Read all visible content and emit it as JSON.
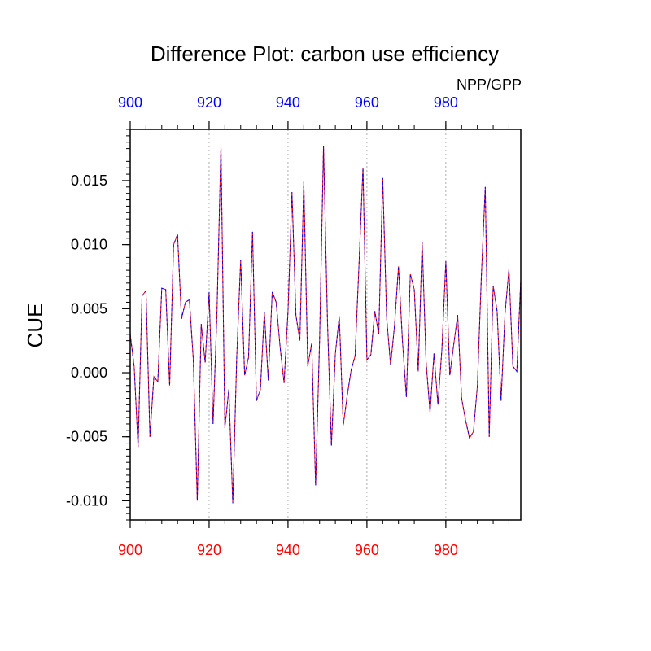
{
  "chart_data": {
    "type": "line",
    "title": "Difference Plot: carbon use efficiency",
    "subtitle": "NPP/GPP",
    "ylabel": "CUE",
    "xlim": [
      900,
      999
    ],
    "ylim": [
      -0.0115,
      0.019
    ],
    "x_ticks": [
      900,
      920,
      940,
      960,
      980
    ],
    "x_tick_labels": [
      "900",
      "920",
      "940",
      "960",
      "980"
    ],
    "y_ticks": [
      -0.01,
      -0.005,
      0.0,
      0.005,
      0.01,
      0.015
    ],
    "y_tick_labels": [
      "-0.010",
      "-0.005",
      "0.000",
      "0.005",
      "0.010",
      "0.015"
    ],
    "colors": {
      "top_axis": "#0000ff",
      "bottom_axis": "#ff0000",
      "line_a": "#ff0000",
      "line_b": "#0000ff",
      "grid": "#999999"
    },
    "series": [
      {
        "name": "difference",
        "x": [
          900,
          901,
          902,
          903,
          904,
          905,
          906,
          907,
          908,
          909,
          910,
          911,
          912,
          913,
          914,
          915,
          916,
          917,
          918,
          919,
          920,
          921,
          922,
          923,
          924,
          925,
          926,
          927,
          928,
          929,
          930,
          931,
          932,
          933,
          934,
          935,
          936,
          937,
          938,
          939,
          940,
          941,
          942,
          943,
          944,
          945,
          946,
          947,
          948,
          949,
          950,
          951,
          952,
          953,
          954,
          955,
          956,
          957,
          958,
          959,
          960,
          961,
          962,
          963,
          964,
          965,
          966,
          967,
          968,
          969,
          970,
          971,
          972,
          973,
          974,
          975,
          976,
          977,
          978,
          979,
          980,
          981,
          982,
          983,
          984,
          985,
          986,
          987,
          988,
          989,
          990,
          991,
          992,
          993,
          994,
          995,
          996,
          997,
          998,
          999
        ],
        "values": [
          0.003,
          0.0005,
          -0.0058,
          0.006,
          0.0064,
          -0.005,
          -0.0003,
          -0.0007,
          0.0066,
          0.0065,
          -0.001,
          0.01,
          0.0108,
          0.0042,
          0.0055,
          0.0057,
          0.001,
          -0.01,
          0.0038,
          0.0008,
          0.0063,
          -0.004,
          0.0048,
          0.0177,
          -0.0043,
          -0.0013,
          -0.0102,
          0.0012,
          0.0088,
          -0.0002,
          0.0012,
          0.011,
          -0.0022,
          -0.0013,
          0.0047,
          -0.0006,
          0.0063,
          0.0055,
          0.002,
          -0.0008,
          0.0048,
          0.0141,
          0.0045,
          0.0025,
          0.0149,
          0.0005,
          0.0023,
          -0.0088,
          0.0025,
          0.0177,
          0.004,
          -0.0057,
          0.0015,
          0.0044,
          -0.0041,
          -0.0018,
          0.0002,
          0.0013,
          0.0085,
          0.016,
          0.001,
          0.0014,
          0.0048,
          0.003,
          0.0152,
          0.0043,
          0.0006,
          0.0037,
          0.0083,
          0.0025,
          -0.0019,
          0.0077,
          0.0065,
          0.0001,
          0.0102,
          0.0008,
          -0.0031,
          0.0015,
          -0.0025,
          0.0018,
          0.0087,
          -0.0002,
          0.0022,
          0.0045,
          -0.002,
          -0.0037,
          -0.0051,
          -0.0046,
          -0.001,
          0.0075,
          0.0145,
          -0.005,
          0.0068,
          0.0048,
          -0.0022,
          0.0046,
          0.0081,
          0.0005,
          0.0001,
          0.0073
        ]
      }
    ]
  }
}
